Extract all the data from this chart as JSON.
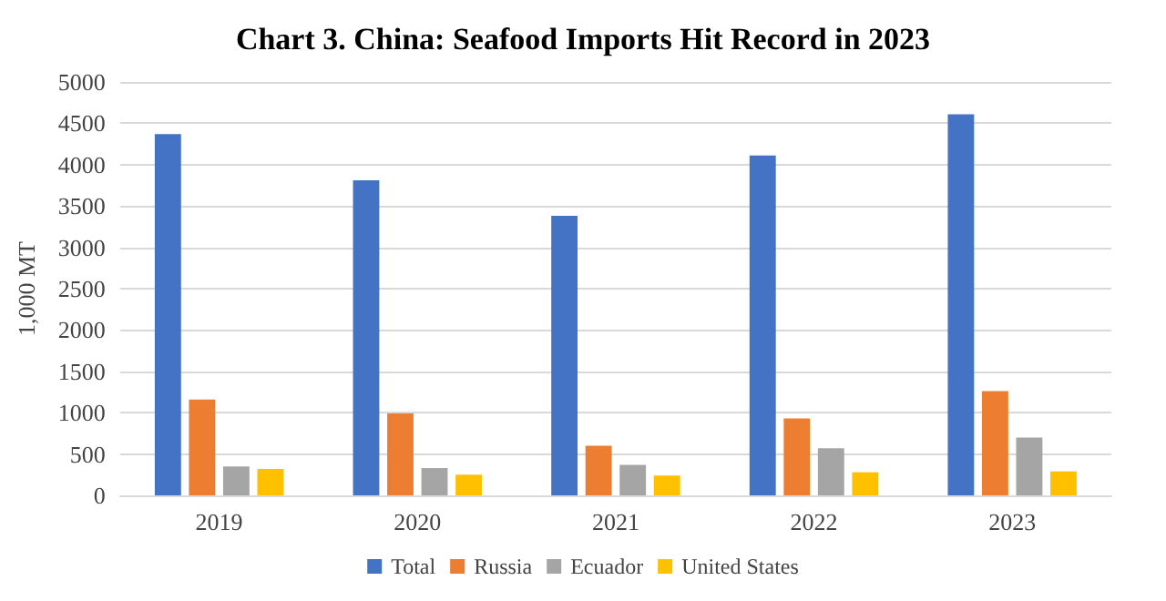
{
  "chart_data": {
    "type": "bar",
    "title": "Chart 3. China: Seafood Imports Hit Record in 2023",
    "ylabel": "1,000 MT",
    "categories": [
      "2019",
      "2020",
      "2021",
      "2022",
      "2023"
    ],
    "series": [
      {
        "name": "Total",
        "color": "#4472c4",
        "values": [
          4370,
          3810,
          3380,
          4110,
          4610
        ]
      },
      {
        "name": "Russia",
        "color": "#ed7d31",
        "values": [
          1160,
          990,
          600,
          930,
          1260
        ]
      },
      {
        "name": "Ecuador",
        "color": "#a5a5a5",
        "values": [
          350,
          330,
          370,
          570,
          700
        ]
      },
      {
        "name": "United States",
        "color": "#ffc000",
        "values": [
          320,
          250,
          240,
          280,
          290
        ]
      }
    ],
    "ylim": [
      0,
      5000
    ],
    "yticks": [
      0,
      500,
      1000,
      1500,
      2000,
      2500,
      3000,
      3500,
      4000,
      4500,
      5000
    ],
    "grid": "y",
    "legend": "bottom"
  }
}
